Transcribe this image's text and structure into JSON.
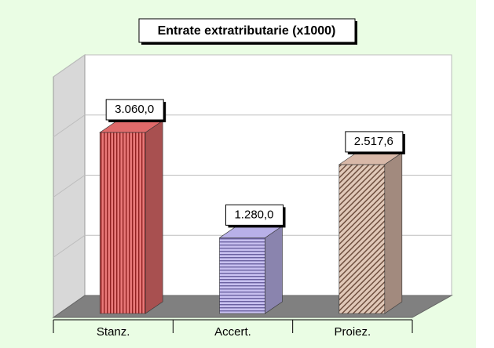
{
  "chart_data": {
    "type": "bar3d",
    "title": "Entrate extratributarie (x1000)",
    "categories": [
      "Stanz.",
      "Accert.",
      "Proiez."
    ],
    "values": [
      3060,
      1280,
      2517.6
    ],
    "value_labels": [
      "3.060,0",
      "1.280,0",
      "2.517,6"
    ],
    "colors": [
      "#e06a6a",
      "#b8b0e8",
      "#d8b8a8"
    ],
    "ylim": [
      0,
      4000
    ],
    "yticks": [
      0,
      1000,
      2000,
      3000,
      4000
    ],
    "grid": true
  }
}
